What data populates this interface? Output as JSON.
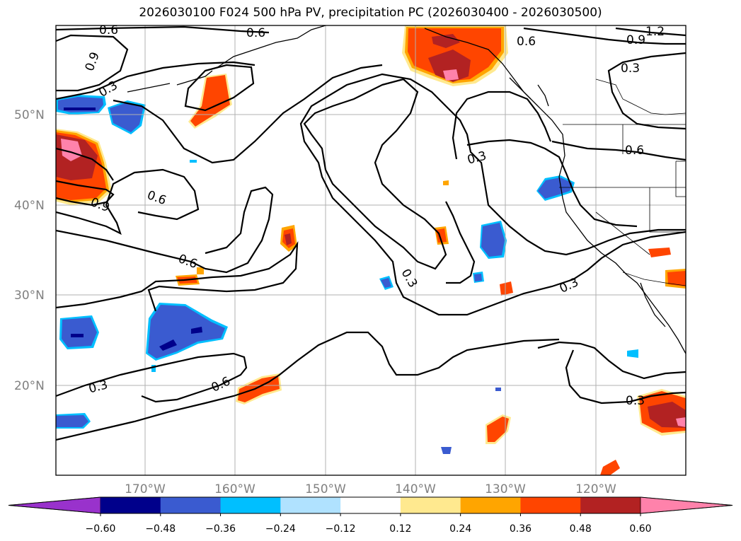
{
  "title": "2026030100 F024 500 hPa PV, precipitation PC (2026030400 - 2026030500)",
  "lat_labels": [
    "50°N",
    "40°N",
    "30°N",
    "20°N"
  ],
  "lon_labels": [
    "170°W",
    "160°W",
    "150°W",
    "140°W",
    "130°W",
    "120°W"
  ],
  "contour_labels": [
    "0.6",
    "0.6",
    "1.2",
    "0.9",
    "0.9",
    "0.3",
    "0.3",
    "0.6",
    "0.3",
    "0.6",
    "0.9",
    "0.6",
    "0.3",
    "0.3",
    "0.3",
    "0.6",
    "0.3"
  ],
  "colorbar": {
    "tick_labels": [
      "−0.60",
      "−0.48",
      "−0.36",
      "−0.24",
      "−0.12",
      "0.12",
      "0.24",
      "0.36",
      "0.48",
      "0.60"
    ],
    "colors": [
      "#9932cc",
      "#00008b",
      "#3a5bd0",
      "#00bfff",
      "#b0e2ff",
      "#ffffff",
      "#ffe98f",
      "#ffa500",
      "#ff4500",
      "#b22222",
      "#ff82ab"
    ]
  },
  "colors": {
    "contour": "#000000",
    "grid": "#b0b0b0",
    "axis_labels": "#808080"
  }
}
